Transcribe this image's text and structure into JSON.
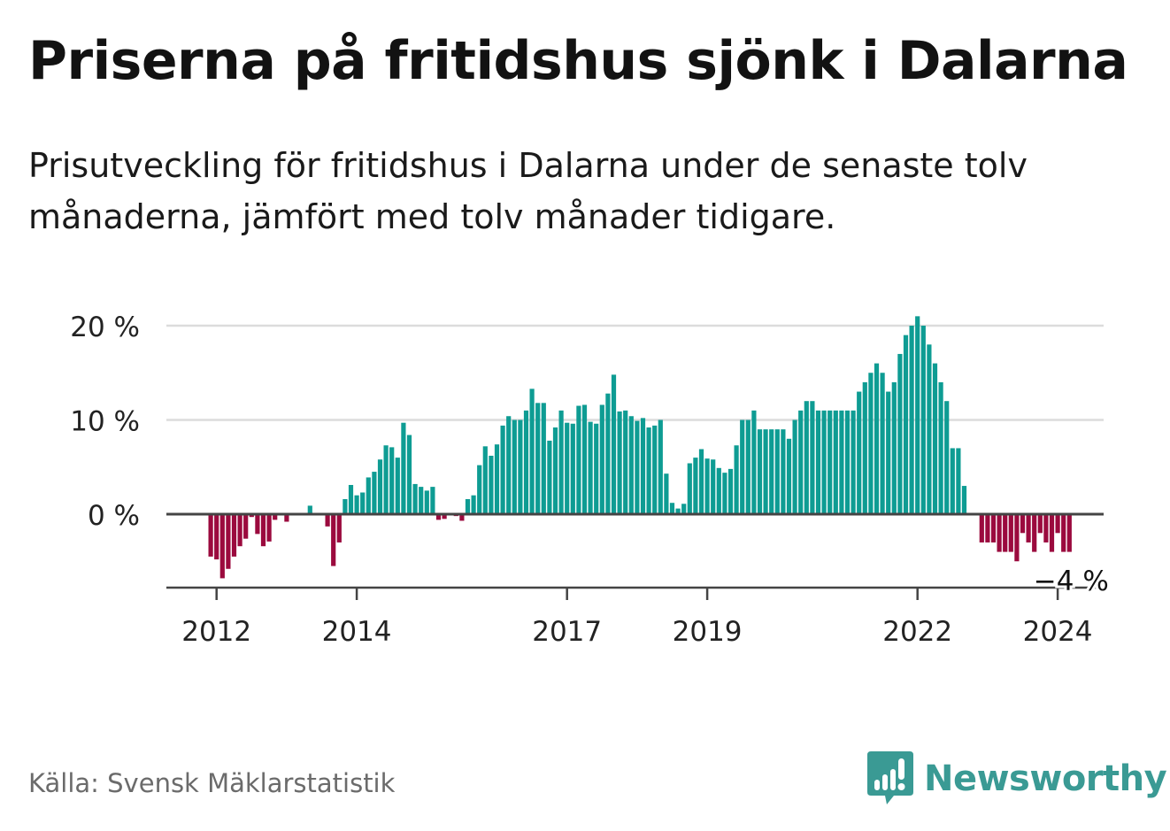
{
  "title": "Priserna på fritidshus sjönk i Dalarna",
  "subtitle": "Prisutveckling för fritidshus i Dalarna under de senaste tolv månaderna, jämfört med tolv månader tidigare.",
  "source": "Källa: Svensk Mäklarstatistik",
  "brand": {
    "name": "Newsworthy",
    "icon": "newsworthy-logo-icon"
  },
  "colors": {
    "positive": "#0e9c93",
    "negative": "#9b0a3e",
    "grid": "#dcdcdc",
    "axis": "#444444",
    "text": "#222222"
  },
  "chart_data": {
    "type": "bar",
    "title": "Priserna på fritidshus sjönk i Dalarna",
    "xlabel": "",
    "ylabel": "",
    "ylim": [
      -7.5,
      21
    ],
    "yticks": [
      0,
      10,
      20
    ],
    "ytick_labels": [
      "0 %",
      "10 %",
      "20 %"
    ],
    "xticks": [
      {
        "label": "2012",
        "index": 1
      },
      {
        "label": "2014",
        "index": 25
      },
      {
        "label": "2017",
        "index": 61
      },
      {
        "label": "2019",
        "index": 85
      },
      {
        "label": "2022",
        "index": 121
      },
      {
        "label": "2024",
        "index": 145
      }
    ],
    "last_value_label": "−4 %",
    "x_start": "2011-12",
    "values": [
      -4.5,
      -4.8,
      -6.8,
      -5.8,
      -4.5,
      -3.4,
      -2.6,
      -0.3,
      -2.1,
      -3.4,
      -2.9,
      -0.6,
      0,
      -0.8,
      0,
      0,
      -0.1,
      0.9,
      0,
      0,
      -1.3,
      -5.5,
      -3.0,
      1.6,
      3.1,
      2.0,
      2.3,
      3.9,
      4.5,
      5.8,
      7.3,
      7.1,
      6.0,
      9.7,
      8.4,
      3.2,
      2.9,
      2.5,
      2.9,
      -0.6,
      -0.5,
      0,
      -0.2,
      -0.7,
      1.6,
      2.0,
      5.2,
      7.2,
      6.2,
      7.4,
      9.4,
      10.4,
      10.0,
      10.0,
      11.0,
      13.3,
      11.8,
      11.8,
      7.8,
      9.2,
      11.0,
      9.7,
      9.6,
      11.5,
      11.6,
      9.8,
      9.6,
      11.6,
      12.8,
      14.8,
      10.9,
      11.0,
      10.4,
      9.9,
      10.2,
      9.2,
      9.4,
      10.0,
      4.3,
      1.2,
      0.6,
      1.1,
      5.4,
      6.0,
      6.9,
      5.9,
      5.8,
      4.9,
      4.4,
      4.8,
      7.3,
      10.0,
      10.0,
      11.0,
      9.0,
      9.0,
      9.0,
      9.0,
      9.0,
      8.0,
      10.0,
      11.0,
      12.0,
      12.0,
      11.0,
      11.0,
      11.0,
      11.0,
      11.0,
      11.0,
      11.0,
      13.0,
      14.0,
      15.0,
      16.0,
      15.0,
      13.0,
      14.0,
      17.0,
      19.0,
      20.0,
      21.0,
      20.0,
      18.0,
      16.0,
      14.0,
      12.0,
      7.0,
      7.0,
      3.0,
      0,
      0,
      -3.0,
      -3.0,
      -3.0,
      -4.0,
      -4.0,
      -4.0,
      -5.0,
      -2.0,
      -3.0,
      -4.0,
      -2.0,
      -3.0,
      -4.0,
      -2.0,
      -4.0,
      -4.0
    ]
  }
}
